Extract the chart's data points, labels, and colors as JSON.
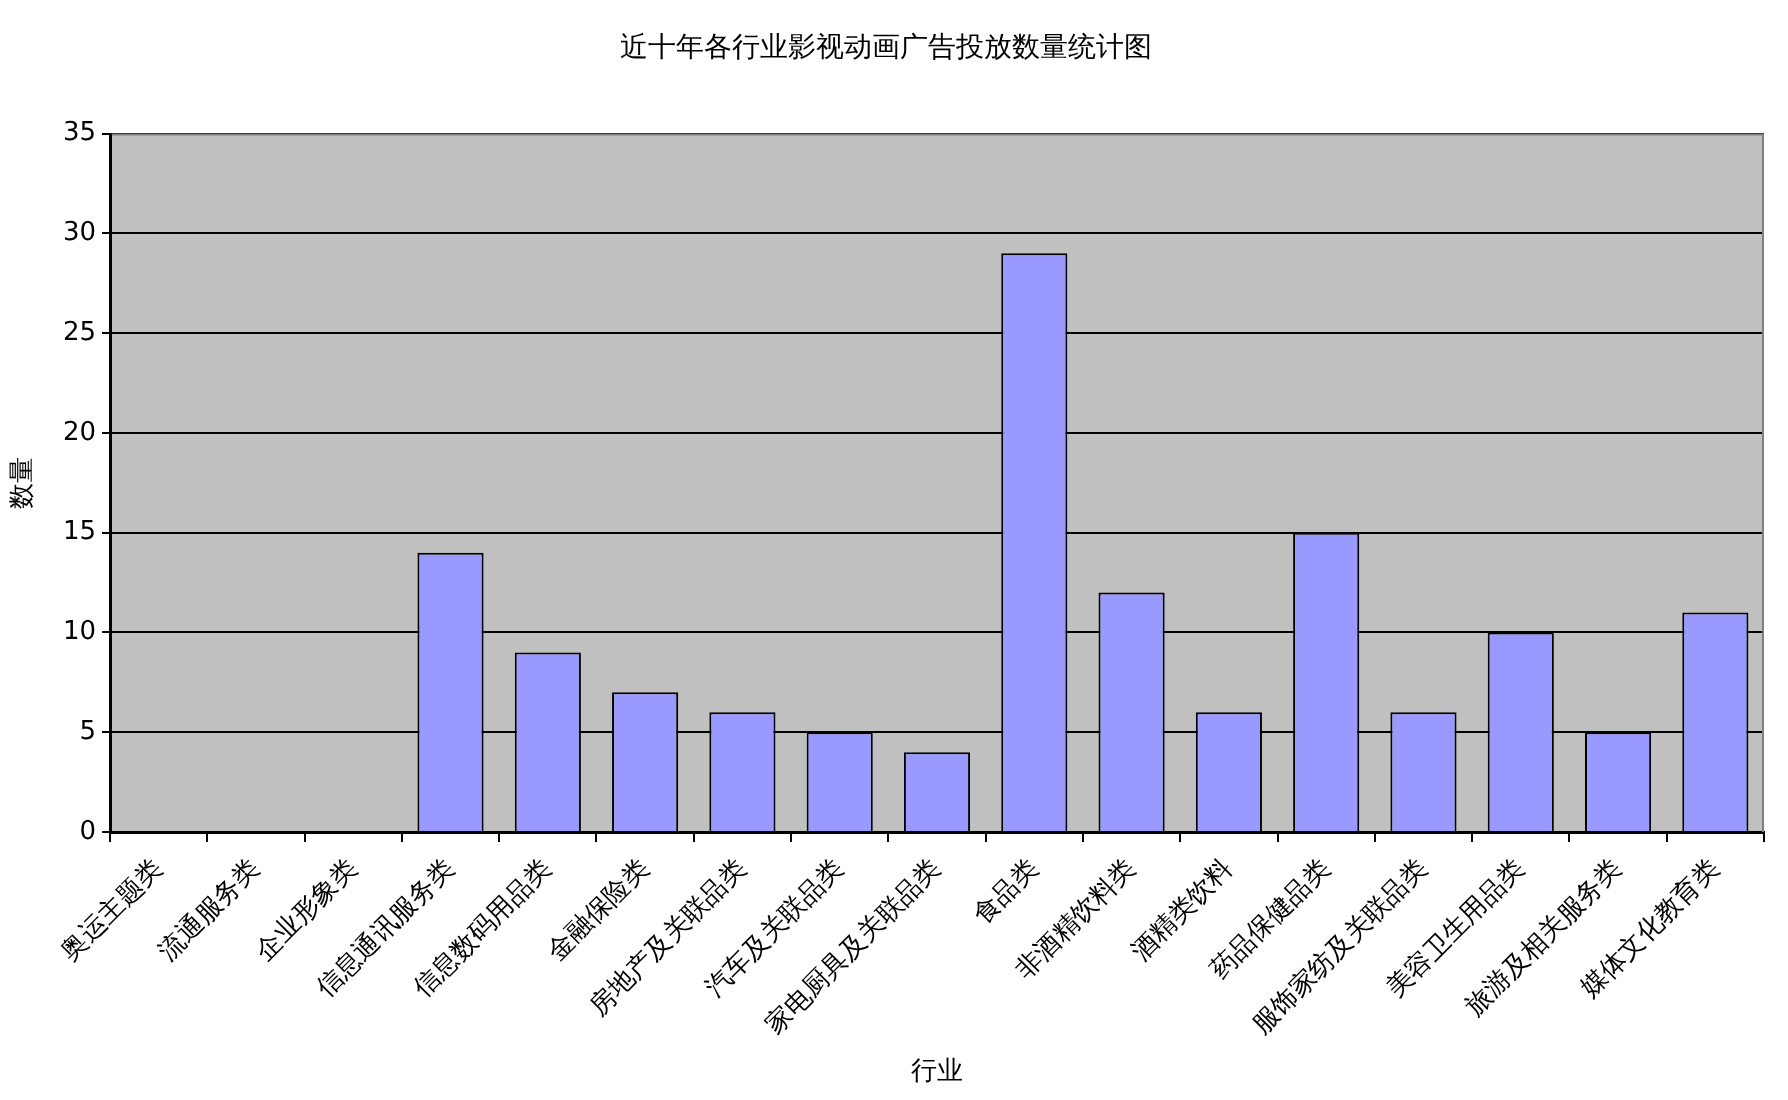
{
  "chart_data": {
    "type": "bar",
    "title": "近十年各行业影视动画广告投放数量统计图",
    "xlabel": "行业",
    "ylabel": "数量",
    "categories": [
      "奥运主题类",
      "流通服务类",
      "企业形象类",
      "信息通讯服务类",
      "信息数码用品类",
      "金融保险类",
      "房地产及关联品类",
      "汽车及关联品类",
      "家电厨具及关联品类",
      "食品类",
      "非酒精饮料类",
      "酒精类饮料",
      "药品保健品类",
      "服饰家纺及关联品类",
      "美容卫生用品类",
      "旅游及相关服务类",
      "媒体文化教育类"
    ],
    "values": [
      0,
      0,
      0,
      14,
      9,
      7,
      6,
      5,
      4,
      29,
      12,
      6,
      15,
      6,
      10,
      5,
      11
    ],
    "color": "#9999ff",
    "ylim": [
      0,
      35
    ],
    "yticks": [
      0,
      5,
      10,
      15,
      20,
      25,
      30,
      35
    ],
    "grid": "y"
  }
}
